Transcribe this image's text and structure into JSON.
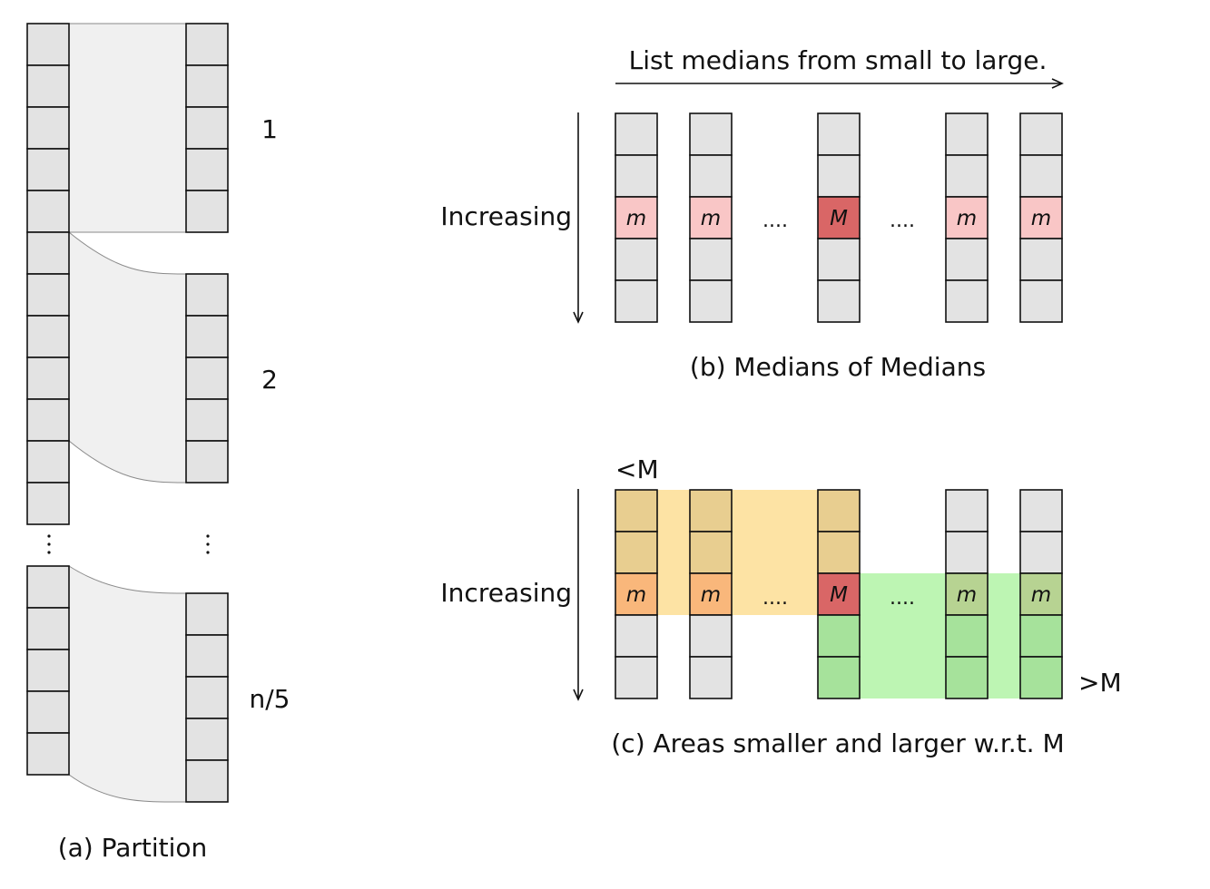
{
  "colors": {
    "cell": "#e3e3e3",
    "median": "#f9c6c6",
    "median_of_medians": "#d96666",
    "smaller_region": "#fde3a4",
    "smaller_cell": "#e8ce90",
    "smaller_median": "#f9b77b",
    "larger_region": "#bdf5b3",
    "larger_cell": "#a6e29b",
    "larger_median": "#b7d392",
    "link": "#f0f0f0"
  },
  "panel_a": {
    "caption": "(a) Partition",
    "group_labels": [
      "1",
      "2",
      "n/5"
    ]
  },
  "panel_b": {
    "caption": "(b) Medians of Medians",
    "top_arrow_label": "List medians from small to large.",
    "side_label": "Increasing",
    "median_symbol": "m",
    "mom_symbol": "M",
    "ellipsis": "...."
  },
  "panel_c": {
    "caption": "(c) Areas smaller and larger w.r.t. M",
    "side_label": "Increasing",
    "smaller_label": "<M",
    "larger_label": ">M",
    "median_symbol": "m",
    "mom_symbol": "M",
    "ellipsis": "...."
  }
}
